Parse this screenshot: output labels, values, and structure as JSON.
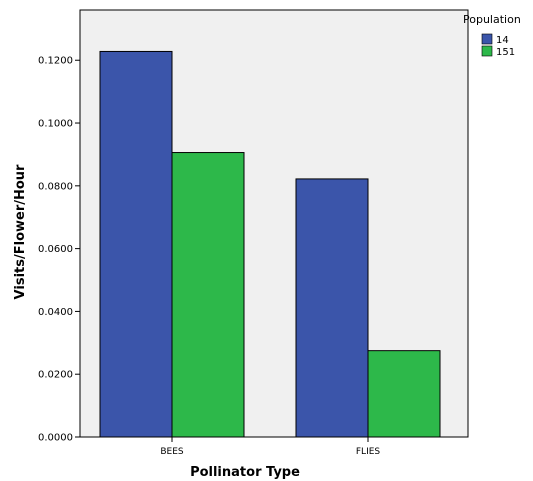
{
  "chart_data": {
    "type": "bar",
    "categories": [
      "BEES",
      "FLIES"
    ],
    "series": [
      {
        "name": "14",
        "values": [
          0.1228,
          0.0822
        ],
        "color": "#3b55aa"
      },
      {
        "name": "151",
        "values": [
          0.0906,
          0.0275
        ],
        "color": "#2db84a"
      }
    ],
    "xlabel": "Pollinator Type",
    "ylabel": "Visits/Flower/Hour",
    "ylim": [
      0,
      0.136
    ],
    "yticks": [
      0.0,
      0.02,
      0.04,
      0.06,
      0.08,
      0.1,
      0.12
    ],
    "ytick_labels": [
      "0.0000",
      "0.0200",
      "0.0400",
      "0.0600",
      "0.0800",
      "0.1000",
      "0.1200"
    ],
    "legend_title": "Population",
    "legend_position": "top-right",
    "plot_background": "#f0f0f0",
    "grid": false
  }
}
